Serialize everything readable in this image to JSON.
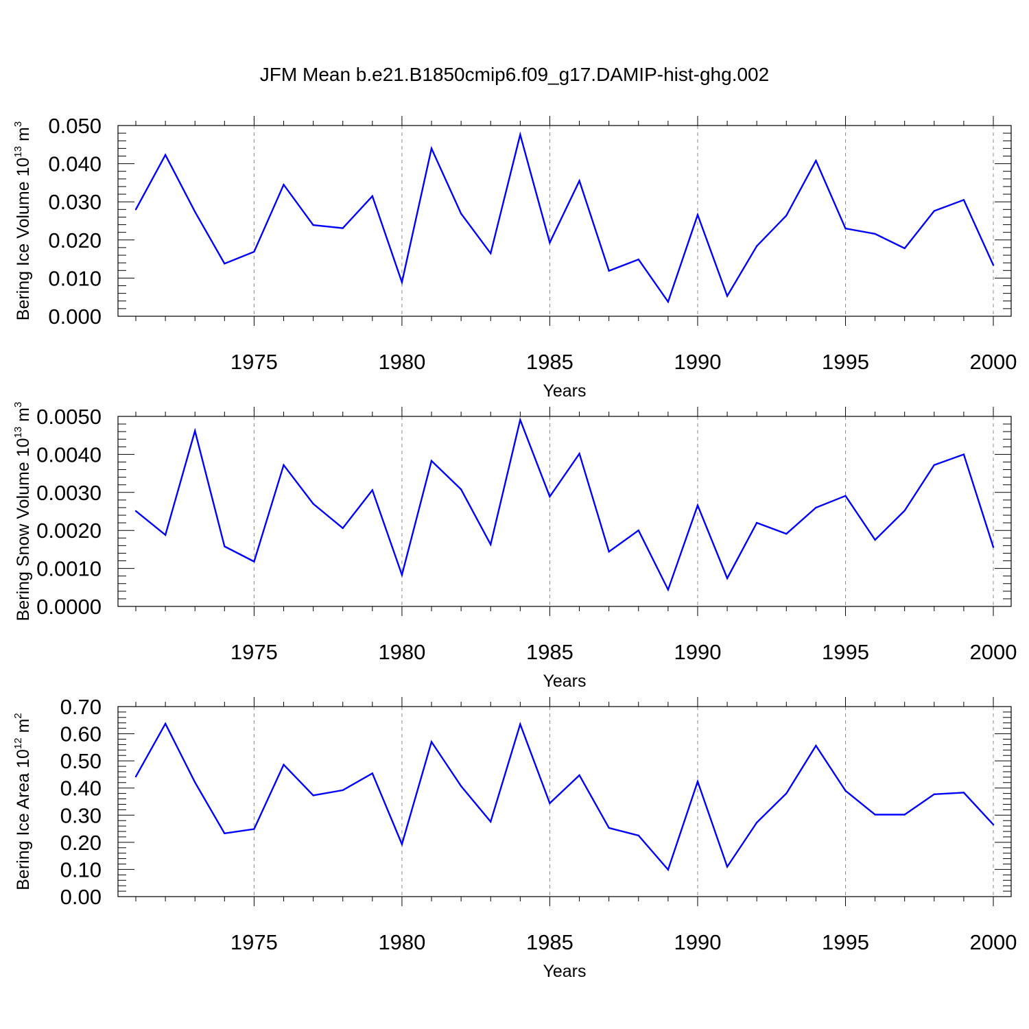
{
  "chart_data": {
    "title": "JFM Mean b.e21.B1850cmip6.f09_g17.DAMIP-hist-ghg.002",
    "panels": [
      {
        "type": "line",
        "ylabel": {
          "text": "Bering Ice Volume 10",
          "exp": "13",
          "unit": " m",
          "unit_exp": "3"
        },
        "xlabel": "Years",
        "xlim": [
          1971,
          2000
        ],
        "ylim": [
          0.0,
          0.05
        ],
        "yticks": [
          0.0,
          0.01,
          0.02,
          0.03,
          0.04,
          0.05
        ],
        "yticklabels": [
          "0.000",
          "0.010",
          "0.020",
          "0.030",
          "0.040",
          "0.050"
        ],
        "xticks": [
          1975,
          1980,
          1985,
          1990,
          1995,
          2000
        ],
        "xticklabels": [
          "1975",
          "1980",
          "1985",
          "1990",
          "1995",
          "2000"
        ],
        "color": "#0000ff",
        "x": [
          1971,
          1972,
          1973,
          1974,
          1975,
          1976,
          1977,
          1978,
          1979,
          1980,
          1981,
          1982,
          1983,
          1984,
          1985,
          1986,
          1987,
          1988,
          1989,
          1990,
          1991,
          1992,
          1993,
          1994,
          1995,
          1996,
          1997,
          1998,
          1999,
          2000
        ],
        "values": [
          0.028,
          0.0423,
          0.0274,
          0.0138,
          0.0169,
          0.0345,
          0.0239,
          0.0231,
          0.0315,
          0.0089,
          0.044,
          0.0269,
          0.0165,
          0.0476,
          0.0193,
          0.0355,
          0.0119,
          0.0149,
          0.0038,
          0.0266,
          0.0053,
          0.0184,
          0.0264,
          0.0408,
          0.023,
          0.0216,
          0.0178,
          0.0276,
          0.0305,
          0.0134
        ]
      },
      {
        "type": "line",
        "ylabel": {
          "text": "Bering Snow Volume 10",
          "exp": "13",
          "unit": " m",
          "unit_exp": "3"
        },
        "xlabel": "Years",
        "xlim": [
          1971,
          2000
        ],
        "ylim": [
          0.0,
          0.005
        ],
        "yticks": [
          0.0,
          0.001,
          0.002,
          0.003,
          0.004,
          0.005
        ],
        "yticklabels": [
          "0.0000",
          "0.0010",
          "0.0020",
          "0.0030",
          "0.0040",
          "0.0050"
        ],
        "xticks": [
          1975,
          1980,
          1985,
          1990,
          1995,
          2000
        ],
        "xticklabels": [
          "1975",
          "1980",
          "1985",
          "1990",
          "1995",
          "2000"
        ],
        "color": "#0000ff",
        "x": [
          1971,
          1972,
          1973,
          1974,
          1975,
          1976,
          1977,
          1978,
          1979,
          1980,
          1981,
          1982,
          1983,
          1984,
          1985,
          1986,
          1987,
          1988,
          1989,
          1990,
          1991,
          1992,
          1993,
          1994,
          1995,
          1996,
          1997,
          1998,
          1999,
          2000
        ],
        "values": [
          0.00251,
          0.00188,
          0.00462,
          0.00158,
          0.00118,
          0.00372,
          0.0027,
          0.00206,
          0.00306,
          0.00083,
          0.00383,
          0.00308,
          0.00163,
          0.00491,
          0.00289,
          0.00402,
          0.00144,
          0.002,
          0.00044,
          0.00266,
          0.00074,
          0.0022,
          0.00191,
          0.0026,
          0.00291,
          0.00175,
          0.00252,
          0.00372,
          0.004,
          0.00156
        ]
      },
      {
        "type": "line",
        "ylabel": {
          "text": "Bering Ice Area 10",
          "exp": "12",
          "unit": " m",
          "unit_exp": "2"
        },
        "xlabel": "Years",
        "xlim": [
          1971,
          2000
        ],
        "ylim": [
          0.0,
          0.7
        ],
        "yticks": [
          0.0,
          0.1,
          0.2,
          0.3,
          0.4,
          0.5,
          0.6,
          0.7
        ],
        "yticklabels": [
          "0.00",
          "0.10",
          "0.20",
          "0.30",
          "0.40",
          "0.50",
          "0.60",
          "0.70"
        ],
        "xticks": [
          1975,
          1980,
          1985,
          1990,
          1995,
          2000
        ],
        "xticklabels": [
          "1975",
          "1980",
          "1985",
          "1990",
          "1995",
          "2000"
        ],
        "color": "#0000ff",
        "x": [
          1971,
          1972,
          1973,
          1974,
          1975,
          1976,
          1977,
          1978,
          1979,
          1980,
          1981,
          1982,
          1983,
          1984,
          1985,
          1986,
          1987,
          1988,
          1989,
          1990,
          1991,
          1992,
          1993,
          1994,
          1995,
          1996,
          1997,
          1998,
          1999,
          2000
        ],
        "values": [
          0.442,
          0.637,
          0.421,
          0.233,
          0.249,
          0.486,
          0.373,
          0.392,
          0.454,
          0.193,
          0.57,
          0.407,
          0.276,
          0.635,
          0.344,
          0.447,
          0.253,
          0.225,
          0.099,
          0.424,
          0.11,
          0.273,
          0.38,
          0.556,
          0.39,
          0.302,
          0.302,
          0.377,
          0.383,
          0.265
        ]
      }
    ]
  }
}
